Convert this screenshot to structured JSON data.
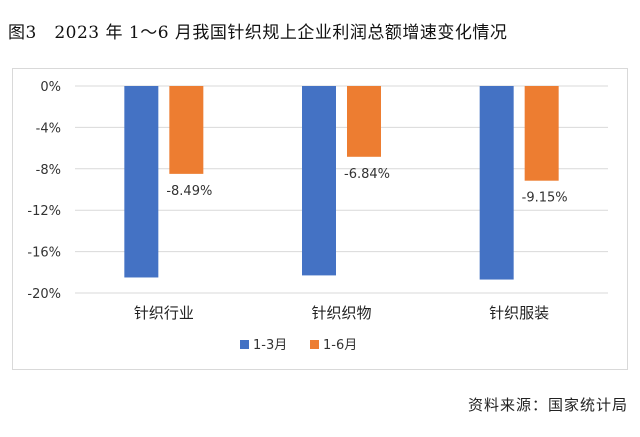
{
  "title": "图3　2023 年 1～6 月我国针织规上企业利润总额增速变化情况",
  "source": "资料来源：国家统计局",
  "colors": {
    "series1": "#4472c4",
    "series2": "#ed7d31",
    "grid": "#d9d9d9",
    "axis": "#555555"
  },
  "chart_data": {
    "type": "bar",
    "categories": [
      "针织行业",
      "针织织物",
      "针织服装"
    ],
    "series": [
      {
        "name": "1-3月",
        "values": [
          -18.5,
          -18.3,
          -18.7
        ],
        "labels": [
          "",
          "",
          ""
        ]
      },
      {
        "name": "1-6月",
        "values": [
          -8.49,
          -6.84,
          -9.15
        ],
        "labels": [
          "-8.49%",
          "-6.84%",
          "-9.15%"
        ]
      }
    ],
    "yticks": [
      "0%",
      "-4%",
      "-8%",
      "-12%",
      "-16%",
      "-20%"
    ],
    "ytick_values": [
      0,
      -4,
      -8,
      -12,
      -16,
      -20
    ],
    "ylim": [
      -20,
      0
    ],
    "legend_position": "bottom",
    "grid": true
  }
}
